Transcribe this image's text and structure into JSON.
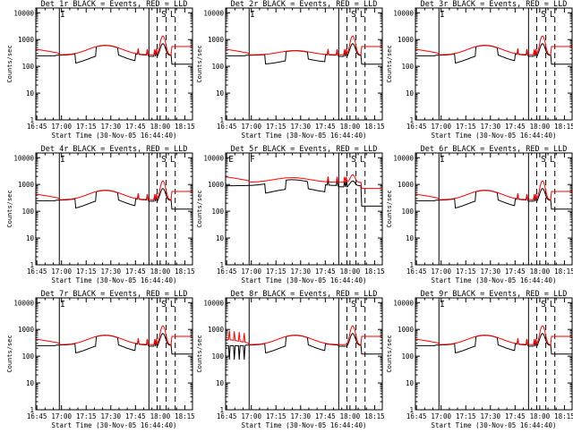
{
  "common": {
    "title_suffix": "BLACK = Events, RED = LLD",
    "xlabel": "Start Time (30-Nov-05 16:44:40)",
    "ylabel": "Counts/sec",
    "x_tick_labels": [
      "16:45",
      "17:00",
      "17:15",
      "17:30",
      "17:45",
      "18:00",
      "18:15"
    ],
    "y_tick_labels": [
      "1",
      "10",
      "100",
      "1000",
      "10000"
    ],
    "colors": {
      "events": "#000000",
      "lld": "#ff0000",
      "axes": "#000000"
    }
  },
  "chart_data": [
    {
      "type": "line",
      "title": "Det 1r",
      "markers": [
        "I",
        "S",
        "L"
      ],
      "xlim_minutes": [
        -0.3,
        95
      ],
      "ylim_log": [
        1,
        15000
      ],
      "series": [
        {
          "name": "Events",
          "shape": "typical",
          "base": 270
        },
        {
          "name": "LLD",
          "shape": "typical",
          "base": 260
        }
      ]
    },
    {
      "type": "line",
      "title": "Det 2r",
      "markers": [
        "I",
        "S",
        "L"
      ],
      "xlim_minutes": [
        -0.3,
        95
      ],
      "ylim_log": [
        1,
        15000
      ],
      "series": [
        {
          "name": "Events",
          "shape": "flat",
          "base": 230
        },
        {
          "name": "LLD",
          "shape": "flat",
          "base": 210
        }
      ]
    },
    {
      "type": "line",
      "title": "Det 3r",
      "markers": [
        "I",
        "S",
        "L"
      ],
      "xlim_minutes": [
        -0.3,
        95
      ],
      "ylim_log": [
        1,
        15000
      ],
      "series": [
        {
          "name": "Events",
          "shape": "typical",
          "base": 270
        },
        {
          "name": "LLD",
          "shape": "typical",
          "base": 260
        }
      ]
    },
    {
      "type": "line",
      "title": "Det 4r",
      "markers": [
        "I",
        "S",
        "L"
      ],
      "xlim_minutes": [
        -0.3,
        95
      ],
      "ylim_log": [
        1,
        15000
      ],
      "series": [
        {
          "name": "Events",
          "shape": "typical",
          "base": 270
        },
        {
          "name": "LLD",
          "shape": "typical",
          "base": 280
        }
      ]
    },
    {
      "type": "line",
      "title": "Det 5r",
      "markers": [
        "E",
        "F",
        "S",
        "L"
      ],
      "xlim_minutes": [
        -0.3,
        95
      ],
      "ylim_log": [
        1,
        15000
      ],
      "series": [
        {
          "name": "Events",
          "shape": "high",
          "base": 1000
        },
        {
          "name": "LLD",
          "shape": "high",
          "base": 1200
        }
      ]
    },
    {
      "type": "line",
      "title": "Det 6r",
      "markers": [
        "I",
        "S",
        "L"
      ],
      "xlim_minutes": [
        -0.3,
        95
      ],
      "ylim_log": [
        1,
        15000
      ],
      "series": [
        {
          "name": "Events",
          "shape": "typical",
          "base": 290
        },
        {
          "name": "LLD",
          "shape": "typical",
          "base": 290
        }
      ]
    },
    {
      "type": "line",
      "title": "Det 7r",
      "markers": [
        "I",
        "S",
        "L"
      ],
      "xlim_minutes": [
        -0.3,
        95
      ],
      "ylim_log": [
        1,
        15000
      ],
      "series": [
        {
          "name": "Events",
          "shape": "typical",
          "base": 270
        },
        {
          "name": "LLD",
          "shape": "typical",
          "base": 270
        }
      ]
    },
    {
      "type": "line",
      "title": "Det 8r",
      "markers": [
        "S",
        "L"
      ],
      "xlim_minutes": [
        -0.3,
        95
      ],
      "ylim_log": [
        1,
        15000
      ],
      "series": [
        {
          "name": "Events",
          "shape": "noisy",
          "base": 230
        },
        {
          "name": "LLD",
          "shape": "noisy",
          "base": 240
        }
      ]
    },
    {
      "type": "line",
      "title": "Det 9r",
      "markers": [
        "I",
        "S",
        "L"
      ],
      "xlim_minutes": [
        -0.3,
        95
      ],
      "ylim_log": [
        1,
        15000
      ],
      "series": [
        {
          "name": "Events",
          "shape": "typical",
          "base": 270
        },
        {
          "name": "LLD",
          "shape": "typical",
          "base": 270
        }
      ]
    }
  ]
}
